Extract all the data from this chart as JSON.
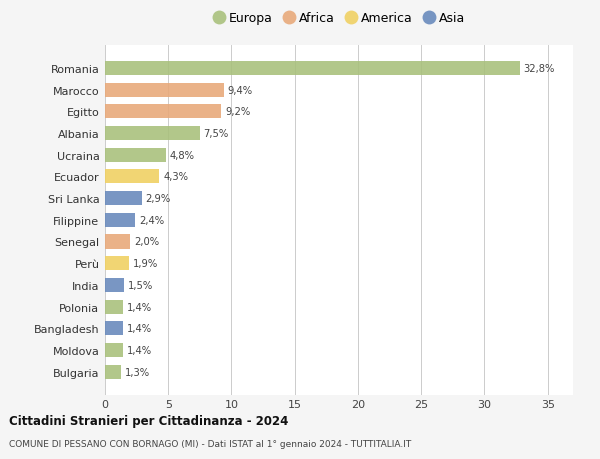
{
  "countries": [
    "Romania",
    "Marocco",
    "Egitto",
    "Albania",
    "Ucraina",
    "Ecuador",
    "Sri Lanka",
    "Filippine",
    "Senegal",
    "Perù",
    "India",
    "Polonia",
    "Bangladesh",
    "Moldova",
    "Bulgaria"
  ],
  "values": [
    32.8,
    9.4,
    9.2,
    7.5,
    4.8,
    4.3,
    2.9,
    2.4,
    2.0,
    1.9,
    1.5,
    1.4,
    1.4,
    1.4,
    1.3
  ],
  "labels": [
    "32,8%",
    "9,4%",
    "9,2%",
    "7,5%",
    "4,8%",
    "4,3%",
    "2,9%",
    "2,4%",
    "2,0%",
    "1,9%",
    "1,5%",
    "1,4%",
    "1,4%",
    "1,4%",
    "1,3%"
  ],
  "continents": [
    "Europa",
    "Africa",
    "Africa",
    "Europa",
    "Europa",
    "America",
    "Asia",
    "Asia",
    "Africa",
    "America",
    "Asia",
    "Europa",
    "Asia",
    "Europa",
    "Europa"
  ],
  "colors": {
    "Europa": "#a8c07a",
    "Africa": "#e8a878",
    "America": "#f0d060",
    "Asia": "#6688bb"
  },
  "legend_items": [
    "Europa",
    "Africa",
    "America",
    "Asia"
  ],
  "title1": "Cittadini Stranieri per Cittadinanza - 2024",
  "title2": "COMUNE DI PESSANO CON BORNAGO (MI) - Dati ISTAT al 1° gennaio 2024 - TUTTITALIA.IT",
  "xlim": [
    0,
    37
  ],
  "xticks": [
    0,
    5,
    10,
    15,
    20,
    25,
    30,
    35
  ],
  "bg_color": "#f5f5f5",
  "bar_bg_color": "#ffffff"
}
